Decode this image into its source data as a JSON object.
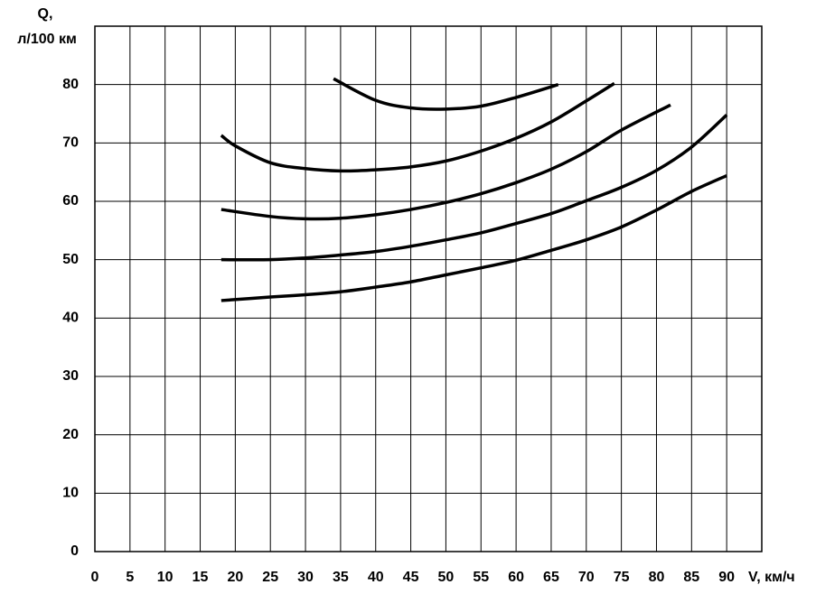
{
  "chart_data": {
    "type": "line",
    "y_label_line1": "Q,",
    "y_label_line2": "л/100 км",
    "x_label": "V, км/ч",
    "xlim": [
      0,
      95
    ],
    "ylim": [
      0,
      90
    ],
    "xticks": [
      0,
      5,
      10,
      15,
      20,
      25,
      30,
      35,
      40,
      45,
      50,
      55,
      60,
      65,
      70,
      75,
      80,
      85,
      90
    ],
    "yticks": [
      0,
      10,
      20,
      30,
      40,
      50,
      60,
      70,
      80
    ],
    "grid": true,
    "series": [
      {
        "color": "#000000",
        "x": [
          34,
          40,
          45,
          50,
          55,
          60,
          66
        ],
        "values": [
          81,
          77.3,
          76,
          75.8,
          76.3,
          77.8,
          80
        ]
      },
      {
        "color": "#000000",
        "x": [
          18,
          20,
          25,
          30,
          35,
          40,
          45,
          50,
          55,
          60,
          65,
          70,
          74
        ],
        "values": [
          71.3,
          69.5,
          66.6,
          65.6,
          65.2,
          65.4,
          65.9,
          66.9,
          68.6,
          70.8,
          73.6,
          77.2,
          80.2
        ]
      },
      {
        "color": "#000000",
        "x": [
          18,
          25,
          30,
          35,
          40,
          45,
          50,
          55,
          60,
          65,
          70,
          75,
          82
        ],
        "values": [
          58.6,
          57.4,
          57,
          57.1,
          57.7,
          58.6,
          59.8,
          61.3,
          63.2,
          65.5,
          68.5,
          72.2,
          76.5
        ]
      },
      {
        "color": "#000000",
        "x": [
          18,
          25,
          30,
          35,
          40,
          45,
          50,
          55,
          60,
          65,
          70,
          75,
          80,
          85,
          90
        ],
        "values": [
          50,
          50,
          50.3,
          50.8,
          51.4,
          52.3,
          53.4,
          54.6,
          56.2,
          57.9,
          60.1,
          62.4,
          65.3,
          69.3,
          74.8
        ]
      },
      {
        "color": "#000000",
        "x": [
          18,
          25,
          30,
          35,
          40,
          45,
          50,
          55,
          60,
          65,
          70,
          75,
          80,
          85,
          90
        ],
        "values": [
          43,
          43.6,
          44,
          44.5,
          45.3,
          46.2,
          47.4,
          48.6,
          49.9,
          51.6,
          53.4,
          55.6,
          58.5,
          61.7,
          64.4
        ]
      }
    ]
  }
}
